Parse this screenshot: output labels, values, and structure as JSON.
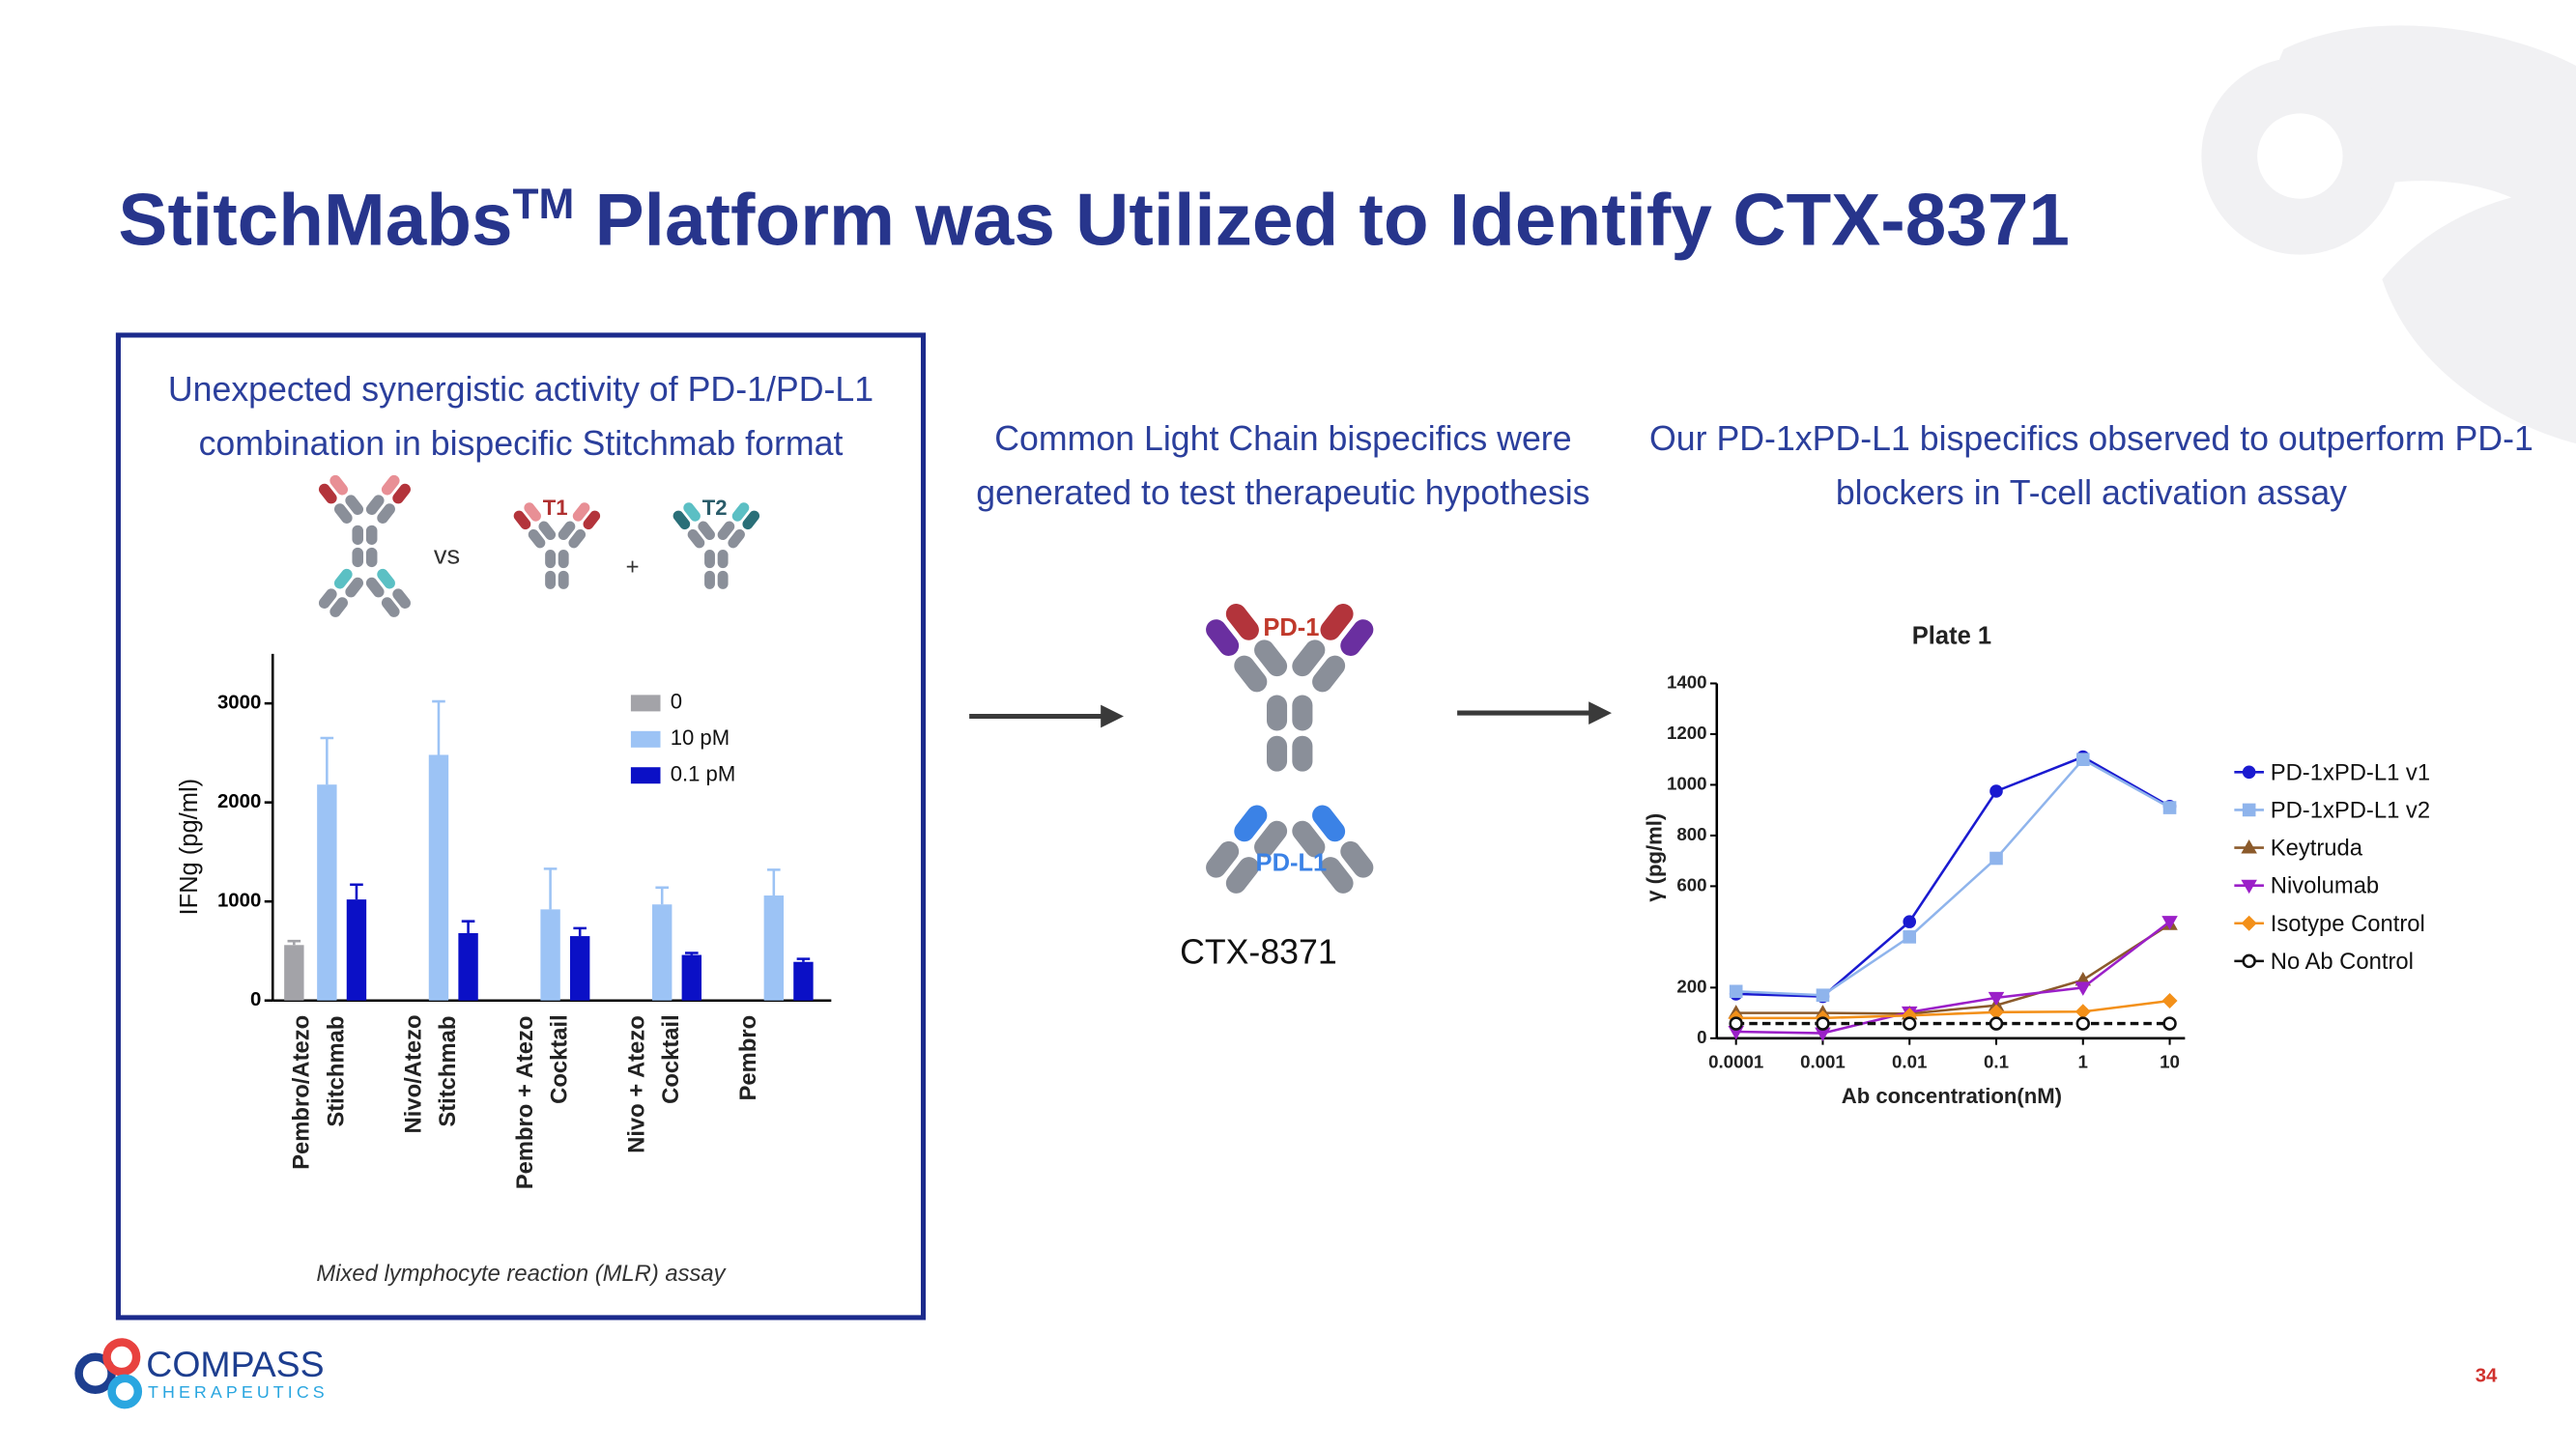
{
  "title": {
    "main": "StitchMabs",
    "sup": "TM",
    "rest": "Platform was Utilized to Identify CTX-8371"
  },
  "left_panel": {
    "heading": "Unexpected synergistic activity of PD-1/PD-L1 combination in bispecific Stitchmab format",
    "vs": "vs",
    "t1": "T1",
    "t2": "T2",
    "plus": "+",
    "footnote": "Mixed lymphocyte reaction (MLR) assay"
  },
  "middle_panel": {
    "heading": "Common Light Chain bispecifics were generated to test therapeutic hypothesis",
    "arm1": "PD-1",
    "arm2": "PD-L1",
    "name": "CTX-8371"
  },
  "right_panel": {
    "heading": "Our PD-1xPD-L1 bispecifics observed to outperform PD-1 blockers in T-cell activation assay"
  },
  "logo": {
    "name": "COMPASS",
    "sub": "THERAPEUTICS"
  },
  "page_number": "34",
  "chart_data": [
    {
      "type": "bar",
      "ylabel": "IFNg (pg/ml)",
      "categories": [
        "Pembro/Atezo\nStitchmab",
        "Nivo/Atezo\nStitchmab",
        "Pembro + Atezo\nCocktail",
        "Nivo + Atezo\nCocktail",
        "Pembro"
      ],
      "series": [
        {
          "name": "0",
          "color": "#a3a3a8",
          "values": [
            560,
            null,
            null,
            null,
            null
          ],
          "errors": [
            40,
            null,
            null,
            null,
            null
          ]
        },
        {
          "name": "10 pM",
          "color": "#9cc3f5",
          "values": [
            2180,
            2480,
            920,
            970,
            1060
          ],
          "errors": [
            470,
            540,
            410,
            170,
            260
          ]
        },
        {
          "name": "0.1 pM",
          "color": "#0b10c6",
          "values": [
            1020,
            680,
            650,
            460,
            390
          ],
          "errors": [
            150,
            120,
            80,
            20,
            30
          ]
        }
      ],
      "ylim": [
        0,
        3500
      ],
      "yticks": [
        0,
        1000,
        2000,
        3000
      ]
    },
    {
      "type": "line",
      "title": "Plate 1",
      "xlabel": "Ab concentration(nM)",
      "ylabel": "γ (pg/ml)",
      "x": [
        0.0001,
        0.001,
        0.01,
        0.1,
        1,
        10
      ],
      "xlog": true,
      "xlim": [
        6e-05,
        15
      ],
      "xticks": [
        0.0001,
        0.001,
        0.01,
        0.1,
        1,
        10
      ],
      "ylim": [
        0,
        1400
      ],
      "yticks": [
        0,
        200,
        600,
        800,
        1000,
        1200,
        1400
      ],
      "series": [
        {
          "name": "PD-1xPD-L1 v1",
          "color": "#1a1ad0",
          "marker": "circle",
          "values": [
            175,
            165,
            460,
            975,
            1110,
            915
          ]
        },
        {
          "name": "PD-1xPD-L1 v2",
          "color": "#8fb4ec",
          "marker": "square",
          "values": [
            185,
            170,
            400,
            710,
            1100,
            910
          ]
        },
        {
          "name": "Keytruda",
          "color": "#8b5a2b",
          "marker": "triangle",
          "values": [
            100,
            100,
            97,
            130,
            230,
            450
          ]
        },
        {
          "name": "Nivolumab",
          "color": "#9b1fc8",
          "marker": "triangle-down",
          "values": [
            26,
            20,
            103,
            160,
            200,
            460
          ]
        },
        {
          "name": "Isotype Control",
          "color": "#f39019",
          "marker": "diamond",
          "values": [
            80,
            80,
            90,
            103,
            105,
            148
          ]
        },
        {
          "name": "No Ab Control",
          "color": "#111111",
          "marker": "open-circle",
          "dashed": true,
          "values": [
            58,
            58,
            58,
            58,
            58,
            58
          ]
        }
      ]
    }
  ]
}
